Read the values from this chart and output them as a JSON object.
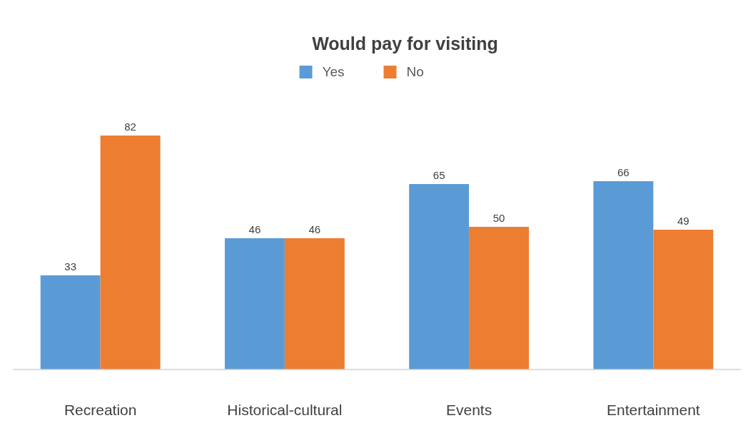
{
  "chart_data": {
    "type": "bar",
    "title": "Would pay for visiting",
    "categories": [
      "Recreation",
      "Historical-cultural",
      "Events",
      "Entertainment"
    ],
    "series": [
      {
        "name": "Yes",
        "color": "#5b9bd5",
        "values": [
          33,
          46,
          65,
          66
        ]
      },
      {
        "name": "No",
        "color": "#ed7d31",
        "values": [
          82,
          46,
          50,
          49
        ]
      }
    ],
    "data_labels": true,
    "legend": "top",
    "grid": false
  }
}
